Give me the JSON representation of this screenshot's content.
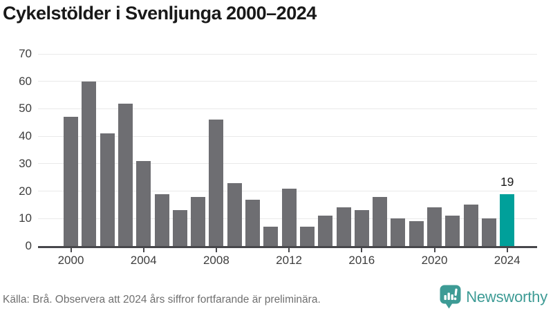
{
  "title": "Cykelstölder i Svenljunga 2000–2024",
  "chart_data": {
    "type": "bar",
    "title": "Cykelstölder i Svenljunga 2000–2024",
    "x": [
      2000,
      2001,
      2002,
      2003,
      2004,
      2005,
      2006,
      2007,
      2008,
      2009,
      2010,
      2011,
      2012,
      2013,
      2014,
      2015,
      2016,
      2017,
      2018,
      2019,
      2020,
      2021,
      2022,
      2023,
      2024
    ],
    "values": [
      47,
      60,
      41,
      52,
      31,
      19,
      13,
      18,
      46,
      23,
      17,
      7,
      21,
      7,
      11,
      14,
      13,
      18,
      10,
      9,
      14,
      11,
      15,
      10,
      19
    ],
    "xlabel": "",
    "ylabel": "",
    "ylim": [
      0,
      70
    ],
    "ytick_step": 10,
    "xtick_years": [
      2000,
      2004,
      2008,
      2012,
      2016,
      2020,
      2024
    ],
    "grid": true,
    "legend_position": "none",
    "bar_color": "#6e6e72",
    "highlight_color": "#00a09a",
    "highlight_index": 24,
    "value_label": {
      "index": 24,
      "text": "19"
    }
  },
  "footer": {
    "source": "Källa: Brå. Observera att 2024 års siffror fortfarande är preliminära.",
    "brand": "Newsworthy"
  },
  "colors": {
    "title_text": "#191919",
    "axis_text": "#3d3d3d",
    "gridline": "#e9e9e9",
    "axis_line": "#47474b",
    "source_text": "#6f6f6f",
    "brand_teal": "#3d9b95"
  },
  "icons": {
    "brand_icon": "newsworthy-speech-bubble-chart-icon"
  }
}
